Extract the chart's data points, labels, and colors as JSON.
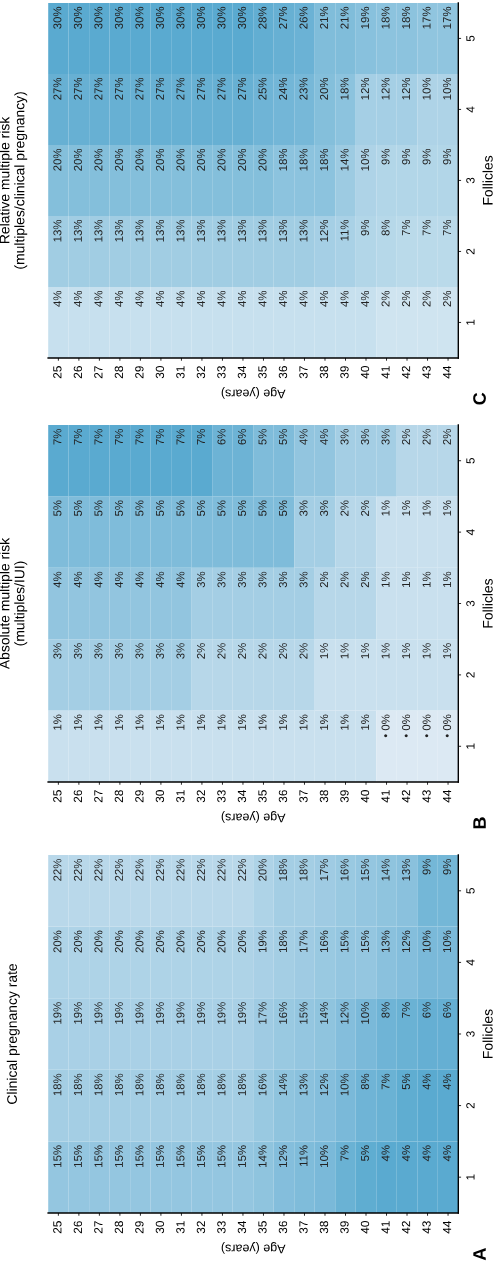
{
  "chart_data": [
    {
      "type": "heatmap",
      "title": "Clinical pregnancy rate",
      "xlabel": "Age (years)",
      "ylabel": "Follicles",
      "annotations": [
        "A"
      ],
      "categories": [
        "25",
        "26",
        "27",
        "28",
        "29",
        "30",
        "31",
        "32",
        "33",
        "34",
        "35",
        "36",
        "37",
        "38",
        "39",
        "40",
        "41",
        "42",
        "43",
        "44"
      ],
      "y_categories": [
        "5",
        "4",
        "3",
        "2",
        "1"
      ],
      "colors": [
        "#5aaad0",
        "#b9d8ea"
      ],
      "cells": [
        [
          22,
          22,
          22,
          22,
          22,
          22,
          22,
          22,
          22,
          22,
          20,
          18,
          18,
          17,
          16,
          15,
          14,
          13,
          9,
          9
        ],
        [
          20,
          20,
          20,
          20,
          20,
          20,
          20,
          20,
          20,
          20,
          19,
          18,
          17,
          16,
          15,
          15,
          13,
          12,
          10,
          10
        ],
        [
          19,
          19,
          19,
          19,
          19,
          19,
          19,
          19,
          19,
          19,
          17,
          16,
          15,
          14,
          12,
          10,
          8,
          7,
          6,
          6
        ],
        [
          18,
          18,
          18,
          18,
          18,
          18,
          18,
          18,
          18,
          18,
          16,
          14,
          13,
          12,
          10,
          8,
          7,
          5,
          4,
          4
        ],
        [
          15,
          15,
          15,
          15,
          15,
          15,
          15,
          15,
          15,
          15,
          14,
          12,
          11,
          10,
          7,
          5,
          4,
          4,
          4,
          4
        ]
      ],
      "cell_labels": [
        [
          "22%",
          "22%",
          "22%",
          "22%",
          "22%",
          "22%",
          "22%",
          "22%",
          "22%",
          "22%",
          "20%",
          "18%",
          "18%",
          "17%",
          "16%",
          "15%",
          "14%",
          "13%",
          "9%",
          "9%"
        ],
        [
          "20%",
          "20%",
          "20%",
          "20%",
          "20%",
          "20%",
          "20%",
          "20%",
          "20%",
          "20%",
          "19%",
          "18%",
          "17%",
          "16%",
          "15%",
          "15%",
          "13%",
          "12%",
          "10%",
          "10%"
        ],
        [
          "19%",
          "19%",
          "19%",
          "19%",
          "19%",
          "19%",
          "19%",
          "19%",
          "19%",
          "19%",
          "17%",
          "16%",
          "15%",
          "14%",
          "12%",
          "10%",
          "8%",
          "7%",
          "6%",
          "6%"
        ],
        [
          "18%",
          "18%",
          "18%",
          "18%",
          "18%",
          "18%",
          "18%",
          "18%",
          "18%",
          "18%",
          "16%",
          "14%",
          "13%",
          "12%",
          "10%",
          "8%",
          "7%",
          "5%",
          "4%",
          "4%"
        ],
        [
          "15%",
          "15%",
          "15%",
          "15%",
          "15%",
          "15%",
          "15%",
          "15%",
          "15%",
          "15%",
          "14%",
          "12%",
          "11%",
          "10%",
          "7%",
          "5%",
          "4%",
          "4%",
          "4%",
          "4%"
        ]
      ]
    },
    {
      "type": "heatmap",
      "title": "Absolute multiple risk\n(multiples/IUI)",
      "xlabel": "Age (years)",
      "ylabel": "Follicles",
      "annotations": [
        "B"
      ],
      "categories": [
        "25",
        "26",
        "27",
        "28",
        "29",
        "30",
        "31",
        "32",
        "33",
        "34",
        "35",
        "36",
        "37",
        "38",
        "39",
        "40",
        "41",
        "42",
        "43",
        "44"
      ],
      "y_categories": [
        "5",
        "4",
        "3",
        "2",
        "1"
      ],
      "colors": [
        "#dce9f3",
        "#5aaad0"
      ],
      "cells": [
        [
          7,
          7,
          7,
          7,
          7,
          7,
          7,
          7,
          6,
          6,
          5,
          5,
          4,
          4,
          3,
          3,
          3,
          2,
          2,
          2
        ],
        [
          5,
          5,
          5,
          5,
          5,
          5,
          5,
          5,
          5,
          5,
          5,
          5,
          3,
          3,
          2,
          2,
          1,
          1,
          1,
          1
        ],
        [
          4,
          4,
          4,
          4,
          4,
          4,
          4,
          3,
          3,
          3,
          3,
          3,
          3,
          2,
          2,
          2,
          1,
          1,
          1,
          1
        ],
        [
          3,
          3,
          3,
          3,
          3,
          3,
          3,
          2,
          2,
          2,
          2,
          2,
          2,
          1,
          1,
          1,
          1,
          1,
          1,
          1
        ],
        [
          1,
          1,
          1,
          1,
          1,
          1,
          1,
          1,
          1,
          1,
          1,
          1,
          1,
          1,
          1,
          1,
          0,
          0,
          0,
          0
        ]
      ],
      "cell_labels": [
        [
          "7%",
          "7%",
          "7%",
          "7%",
          "7%",
          "7%",
          "7%",
          "7%",
          "6%",
          "6%",
          "5%",
          "5%",
          "4%",
          "4%",
          "3%",
          "3%",
          "3%",
          "2%",
          "2%",
          "2%"
        ],
        [
          "5%",
          "5%",
          "5%",
          "5%",
          "5%",
          "5%",
          "5%",
          "5%",
          "5%",
          "5%",
          "5%",
          "5%",
          "3%",
          "3%",
          "2%",
          "2%",
          "1%",
          "1%",
          "1%",
          "1%"
        ],
        [
          "4%",
          "4%",
          "4%",
          "4%",
          "4%",
          "4%",
          "4%",
          "3%",
          "3%",
          "3%",
          "3%",
          "3%",
          "3%",
          "2%",
          "2%",
          "2%",
          "1%",
          "1%",
          "1%",
          "1%"
        ],
        [
          "3%",
          "3%",
          "3%",
          "3%",
          "3%",
          "3%",
          "3%",
          "2%",
          "2%",
          "2%",
          "2%",
          "2%",
          "2%",
          "1%",
          "1%",
          "1%",
          "1%",
          "1%",
          "1%",
          "1%"
        ],
        [
          "1%",
          "1%",
          "1%",
          "1%",
          "1%",
          "1%",
          "1%",
          "1%",
          "1%",
          "1%",
          "1%",
          "1%",
          "1%",
          "1%",
          "1%",
          "1%",
          "• 0%",
          "• 0%",
          "• 0%",
          "• 0%"
        ]
      ]
    },
    {
      "type": "heatmap",
      "title": "Relative multiple risk\n(multiples/clinical pregnancy)",
      "xlabel": "Age (years)",
      "ylabel": "Follicles",
      "annotations": [
        "C"
      ],
      "categories": [
        "25",
        "26",
        "27",
        "28",
        "29",
        "30",
        "31",
        "32",
        "33",
        "34",
        "35",
        "36",
        "37",
        "38",
        "39",
        "40",
        "41",
        "42",
        "43",
        "44"
      ],
      "y_categories": [
        "5",
        "4",
        "3",
        "2",
        "1"
      ],
      "colors": [
        "#cfe4f0",
        "#5aaad0"
      ],
      "cells": [
        [
          30,
          30,
          30,
          30,
          30,
          30,
          30,
          30,
          30,
          30,
          28,
          27,
          26,
          21,
          21,
          19,
          18,
          18,
          17,
          17
        ],
        [
          27,
          27,
          27,
          27,
          27,
          27,
          27,
          27,
          27,
          27,
          25,
          24,
          23,
          20,
          18,
          12,
          12,
          12,
          10,
          10
        ],
        [
          20,
          20,
          20,
          20,
          20,
          20,
          20,
          20,
          20,
          20,
          20,
          18,
          18,
          18,
          14,
          10,
          9,
          9,
          9,
          9
        ],
        [
          13,
          13,
          13,
          13,
          13,
          13,
          13,
          13,
          13,
          13,
          13,
          13,
          13,
          12,
          11,
          9,
          8,
          7,
          7,
          7
        ],
        [
          4,
          4,
          4,
          4,
          4,
          4,
          4,
          4,
          4,
          4,
          4,
          4,
          4,
          4,
          4,
          4,
          2,
          2,
          2,
          2
        ]
      ],
      "cell_labels": [
        [
          "30%",
          "30%",
          "30%",
          "30%",
          "30%",
          "30%",
          "30%",
          "30%",
          "30%",
          "30%",
          "28%",
          "27%",
          "26%",
          "21%",
          "21%",
          "19%",
          "18%",
          "18%",
          "17%",
          "17%"
        ],
        [
          "27%",
          "27%",
          "27%",
          "27%",
          "27%",
          "27%",
          "27%",
          "27%",
          "27%",
          "27%",
          "25%",
          "24%",
          "23%",
          "20%",
          "18%",
          "12%",
          "12%",
          "12%",
          "10%",
          "10%"
        ],
        [
          "20%",
          "20%",
          "20%",
          "20%",
          "20%",
          "20%",
          "20%",
          "20%",
          "20%",
          "20%",
          "20%",
          "18%",
          "18%",
          "18%",
          "14%",
          "10%",
          "9%",
          "9%",
          "9%",
          "9%"
        ],
        [
          "13%",
          "13%",
          "13%",
          "13%",
          "13%",
          "13%",
          "13%",
          "13%",
          "13%",
          "13%",
          "13%",
          "13%",
          "13%",
          "12%",
          "11%",
          "9%",
          "8%",
          "7%",
          "7%",
          "7%"
        ],
        [
          "4%",
          "4%",
          "4%",
          "4%",
          "4%",
          "4%",
          "4%",
          "4%",
          "4%",
          "4%",
          "4%",
          "4%",
          "4%",
          "4%",
          "4%",
          "4%",
          "2%",
          "2%",
          "2%",
          "2%"
        ]
      ]
    }
  ]
}
